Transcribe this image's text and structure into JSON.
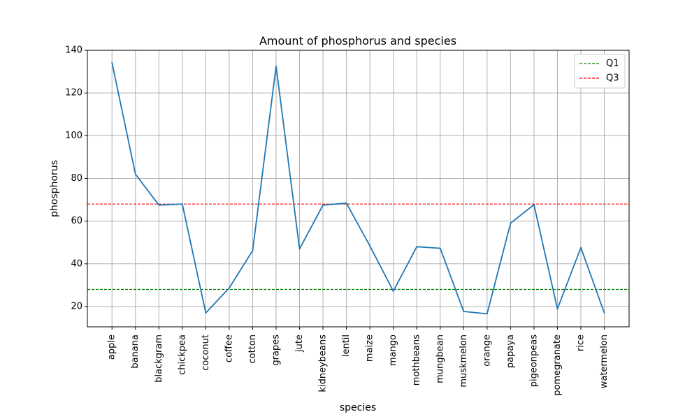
{
  "chart_data": {
    "type": "line",
    "title": "Amount of phosphorus and species",
    "xlabel": "species",
    "ylabel": "phosphorus",
    "ylim": [
      10.5,
      140
    ],
    "yticks": [
      20,
      40,
      60,
      80,
      100,
      120,
      140
    ],
    "grid": true,
    "legend_position": "top-right",
    "categories": [
      "apple",
      "banana",
      "blackgram",
      "chickpea",
      "coconut",
      "coffee",
      "cotton",
      "grapes",
      "jute",
      "kidneybeans",
      "lentil",
      "maize",
      "mango",
      "mothbeans",
      "mungbean",
      "muskmelon",
      "orange",
      "papaya",
      "pigeonpeas",
      "pomegranate",
      "rice",
      "watermelon"
    ],
    "series": [
      {
        "color": "#1f77b4",
        "values": [
          134.2,
          82.0,
          67.5,
          68.0,
          17.0,
          28.7,
          46.2,
          132.5,
          47.0,
          67.5,
          68.4,
          48.4,
          27.2,
          48.0,
          47.3,
          17.7,
          16.6,
          59.0,
          67.7,
          18.9,
          47.6,
          17.0
        ]
      }
    ],
    "reference_lines": [
      {
        "name": "Q1",
        "value": 28.0,
        "color": "#008000"
      },
      {
        "name": "Q3",
        "value": 68.0,
        "color": "#ff0000"
      }
    ]
  }
}
